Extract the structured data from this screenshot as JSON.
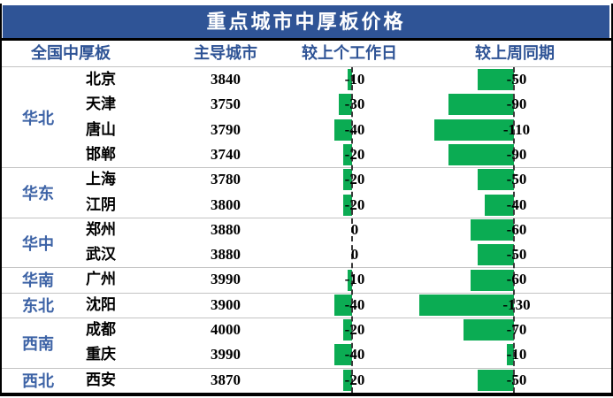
{
  "chart_data": {
    "type": "table",
    "title": "重点城市中厚板价格",
    "columns": {
      "region": "全国中厚板",
      "price": "主导城市",
      "day_change": "较上个工作日",
      "week_change": "较上周同期"
    },
    "groups": [
      {
        "region": "华北",
        "rows": [
          {
            "city": "北京",
            "price": 3840,
            "day": -10,
            "week": -50
          },
          {
            "city": "天津",
            "price": 3750,
            "day": -30,
            "week": -90
          },
          {
            "city": "唐山",
            "price": 3790,
            "day": -40,
            "week": -110
          },
          {
            "city": "邯郸",
            "price": 3740,
            "day": -20,
            "week": -90
          }
        ]
      },
      {
        "region": "华东",
        "rows": [
          {
            "city": "上海",
            "price": 3780,
            "day": -20,
            "week": -50
          },
          {
            "city": "江阴",
            "price": 3800,
            "day": -20,
            "week": -40
          }
        ]
      },
      {
        "region": "华中",
        "rows": [
          {
            "city": "郑州",
            "price": 3880,
            "day": 0,
            "week": -60
          },
          {
            "city": "武汉",
            "price": 3880,
            "day": 0,
            "week": -50
          }
        ]
      },
      {
        "region": "华南",
        "rows": [
          {
            "city": "广州",
            "price": 3990,
            "day": -10,
            "week": -60
          }
        ]
      },
      {
        "region": "东北",
        "rows": [
          {
            "city": "沈阳",
            "price": 3900,
            "day": -40,
            "week": -130
          }
        ]
      },
      {
        "region": "西南",
        "rows": [
          {
            "city": "成都",
            "price": 4000,
            "day": -20,
            "week": -70
          },
          {
            "city": "重庆",
            "price": 3990,
            "day": -40,
            "week": -10
          }
        ]
      },
      {
        "region": "西北",
        "rows": [
          {
            "city": "西安",
            "price": 3870,
            "day": -20,
            "week": -50
          }
        ]
      }
    ],
    "bar_style": "negative-only green data bars extending left from a dashed zero axis",
    "colors": {
      "title_bg": "#2F5496",
      "title_text": "#FFFFFF",
      "header_text": "#2F5496",
      "region_text": "#3D63A6",
      "value_text": "#000000",
      "bar_green": "#0BAC53",
      "separator": "#C3C3C3",
      "border": "#000000"
    }
  }
}
